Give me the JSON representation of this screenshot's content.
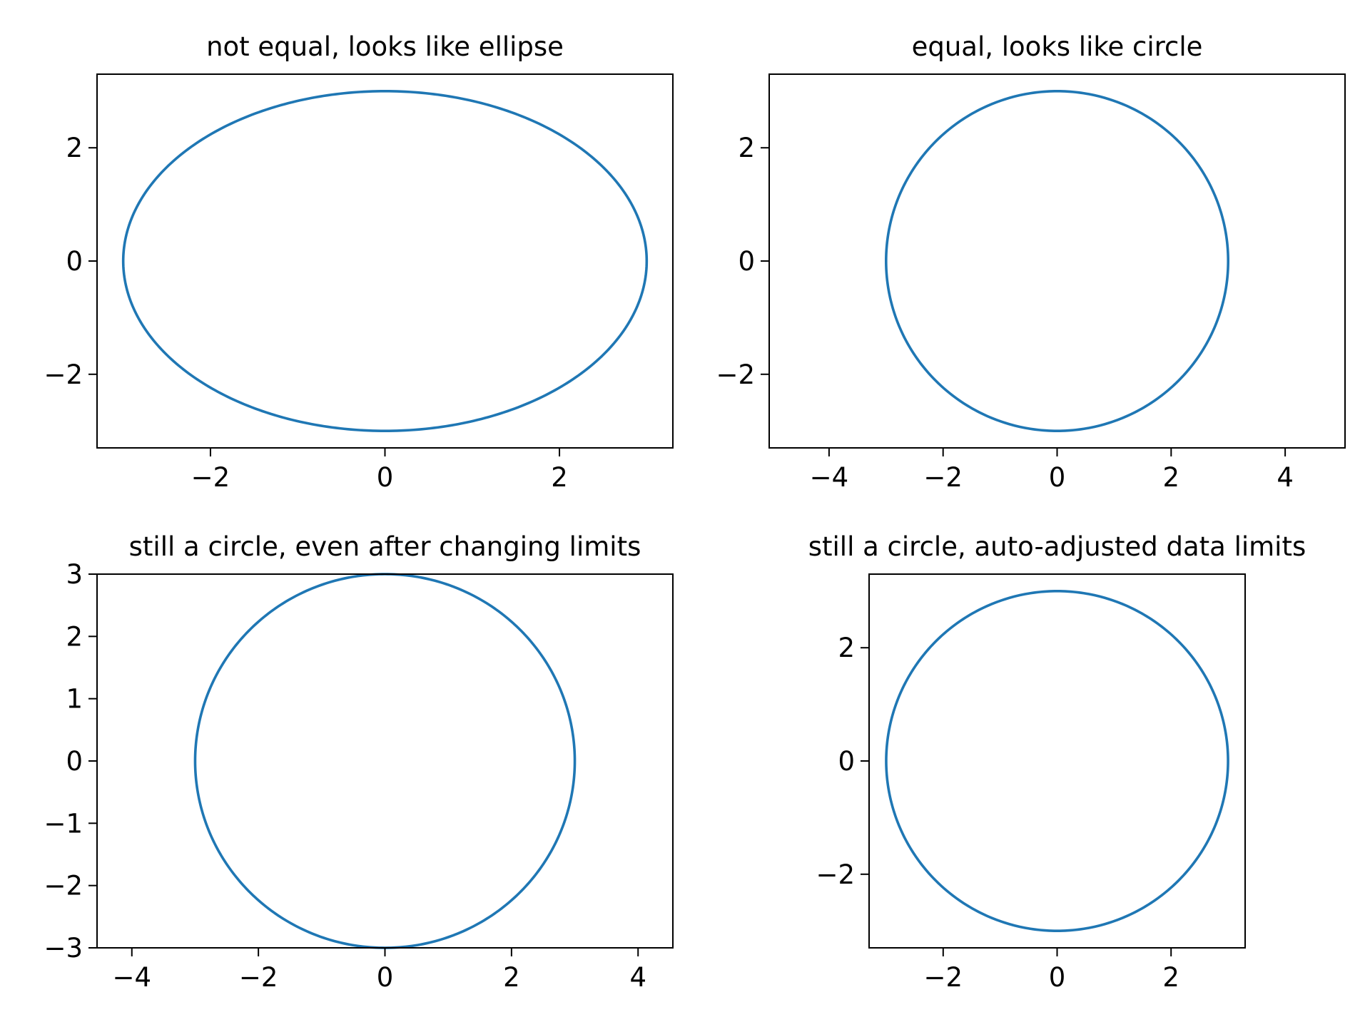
{
  "figure": {
    "background": "#ffffff",
    "line_color": "#1f77b4"
  },
  "chart_data": [
    {
      "type": "line",
      "title": "not equal, looks like ellipse",
      "series": [
        {
          "shape": "circle",
          "center": [
            0,
            0
          ],
          "radius": 3
        }
      ],
      "xlim": [
        -3.3,
        3.3
      ],
      "ylim": [
        -3.3,
        3.3
      ],
      "xticks": [
        -2,
        0,
        2
      ],
      "yticks": [
        -2,
        0,
        2
      ],
      "xtick_labels": [
        "−2",
        "0",
        "2"
      ],
      "ytick_labels": [
        "−2",
        "0",
        "2"
      ],
      "grid": false
    },
    {
      "type": "line",
      "title": "equal, looks like circle",
      "series": [
        {
          "shape": "circle",
          "center": [
            0,
            0
          ],
          "radius": 3
        }
      ],
      "xlim": [
        -5.05,
        5.05
      ],
      "ylim": [
        -3.3,
        3.3
      ],
      "xticks": [
        -4,
        -2,
        0,
        2,
        4
      ],
      "yticks": [
        -2,
        0,
        2
      ],
      "xtick_labels": [
        "−4",
        "−2",
        "0",
        "2",
        "4"
      ],
      "ytick_labels": [
        "−2",
        "0",
        "2"
      ],
      "grid": false
    },
    {
      "type": "line",
      "title": "still a circle, even after changing limits",
      "series": [
        {
          "shape": "circle",
          "center": [
            0,
            0
          ],
          "radius": 3
        }
      ],
      "xlim": [
        -4.55,
        4.55
      ],
      "ylim": [
        -3,
        3
      ],
      "xticks": [
        -4,
        -2,
        0,
        2,
        4
      ],
      "yticks": [
        -3,
        -2,
        -1,
        0,
        1,
        2,
        3
      ],
      "xtick_labels": [
        "−4",
        "−2",
        "0",
        "2",
        "4"
      ],
      "ytick_labels": [
        "−3",
        "−2",
        "−1",
        "0",
        "1",
        "2",
        "3"
      ],
      "grid": false
    },
    {
      "type": "line",
      "title": "still a circle, auto-adjusted data limits",
      "series": [
        {
          "shape": "circle",
          "center": [
            0,
            0
          ],
          "radius": 3
        }
      ],
      "xlim": [
        -3.3,
        3.3
      ],
      "ylim": [
        -3.3,
        3.3
      ],
      "xticks": [
        -2,
        0,
        2
      ],
      "yticks": [
        -2,
        0,
        2
      ],
      "xtick_labels": [
        "−2",
        "0",
        "2"
      ],
      "ytick_labels": [
        "−2",
        "0",
        "2"
      ],
      "grid": false
    }
  ]
}
